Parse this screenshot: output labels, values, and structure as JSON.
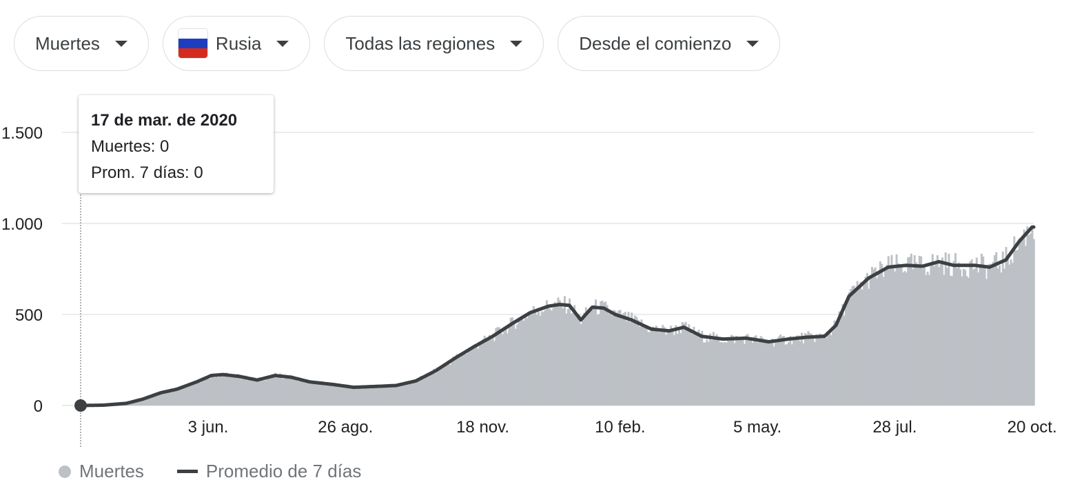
{
  "filters": {
    "metric": "Muertes",
    "country": "Rusia",
    "region": "Todas las regiones",
    "period": "Desde el comienzo"
  },
  "colors": {
    "bars": "#bdc1c6",
    "avg_line": "#3c4043",
    "flag_white": "#ffffff",
    "flag_blue": "#1c3ebf",
    "flag_red": "#d52b1e"
  },
  "tooltip": {
    "date": "17 de mar. de 2020",
    "deaths": "Muertes: 0",
    "avg": "Prom. 7 días: 0"
  },
  "legend": {
    "deaths": "Muertes",
    "avg": "Promedio de 7 días"
  },
  "chart_data": {
    "type": "bar",
    "ylim": [
      0,
      1500
    ],
    "y_ticks": [
      0,
      500,
      1000,
      1500
    ],
    "y_tick_labels": [
      "0",
      "500",
      "1.000",
      "1.500"
    ],
    "x_tick_dates": [
      "2020-06-03",
      "2020-08-26",
      "2020-11-18",
      "2021-02-10",
      "2021-05-05",
      "2021-07-28",
      "2021-10-20"
    ],
    "x_tick_labels": [
      "3 jun.",
      "26 ago.",
      "18 nov.",
      "10 feb.",
      "5 may.",
      "28 jul.",
      "20 oct."
    ],
    "x_range": [
      "2020-03-17",
      "2021-10-21"
    ],
    "highlight": {
      "date": "2020-03-17",
      "value": 0
    },
    "series": [
      {
        "name": "Promedio de 7 días",
        "type": "line",
        "points": [
          [
            "2020-03-17",
            0
          ],
          [
            "2020-03-31",
            2
          ],
          [
            "2020-04-14",
            12
          ],
          [
            "2020-04-24",
            35
          ],
          [
            "2020-05-05",
            70
          ],
          [
            "2020-05-15",
            90
          ],
          [
            "2020-05-27",
            130
          ],
          [
            "2020-06-05",
            165
          ],
          [
            "2020-06-12",
            170
          ],
          [
            "2020-06-22",
            160
          ],
          [
            "2020-07-03",
            140
          ],
          [
            "2020-07-14",
            165
          ],
          [
            "2020-07-24",
            155
          ],
          [
            "2020-08-04",
            130
          ],
          [
            "2020-08-19",
            115
          ],
          [
            "2020-08-31",
            100
          ],
          [
            "2020-09-14",
            105
          ],
          [
            "2020-09-26",
            110
          ],
          [
            "2020-10-08",
            135
          ],
          [
            "2020-10-20",
            190
          ],
          [
            "2020-11-01",
            260
          ],
          [
            "2020-11-12",
            320
          ],
          [
            "2020-11-24",
            380
          ],
          [
            "2020-12-06",
            450
          ],
          [
            "2020-12-17",
            510
          ],
          [
            "2020-12-28",
            545
          ],
          [
            "2021-01-04",
            555
          ],
          [
            "2021-01-10",
            550
          ],
          [
            "2021-01-17",
            470
          ],
          [
            "2021-01-24",
            540
          ],
          [
            "2021-01-31",
            535
          ],
          [
            "2021-02-07",
            500
          ],
          [
            "2021-02-17",
            470
          ],
          [
            "2021-03-01",
            420
          ],
          [
            "2021-03-12",
            410
          ],
          [
            "2021-03-21",
            430
          ],
          [
            "2021-04-01",
            380
          ],
          [
            "2021-04-14",
            365
          ],
          [
            "2021-04-28",
            370
          ],
          [
            "2021-05-12",
            350
          ],
          [
            "2021-05-24",
            365
          ],
          [
            "2021-06-04",
            375
          ],
          [
            "2021-06-15",
            380
          ],
          [
            "2021-06-22",
            440
          ],
          [
            "2021-06-30",
            600
          ],
          [
            "2021-07-12",
            700
          ],
          [
            "2021-07-24",
            760
          ],
          [
            "2021-08-04",
            770
          ],
          [
            "2021-08-14",
            765
          ],
          [
            "2021-08-24",
            790
          ],
          [
            "2021-09-02",
            770
          ],
          [
            "2021-09-15",
            770
          ],
          [
            "2021-09-24",
            760
          ],
          [
            "2021-10-04",
            800
          ],
          [
            "2021-10-12",
            900
          ],
          [
            "2021-10-20",
            980
          ]
        ]
      },
      {
        "name": "Muertes",
        "type": "bar",
        "note": "daily values follow the 7-day average with noise"
      }
    ]
  }
}
